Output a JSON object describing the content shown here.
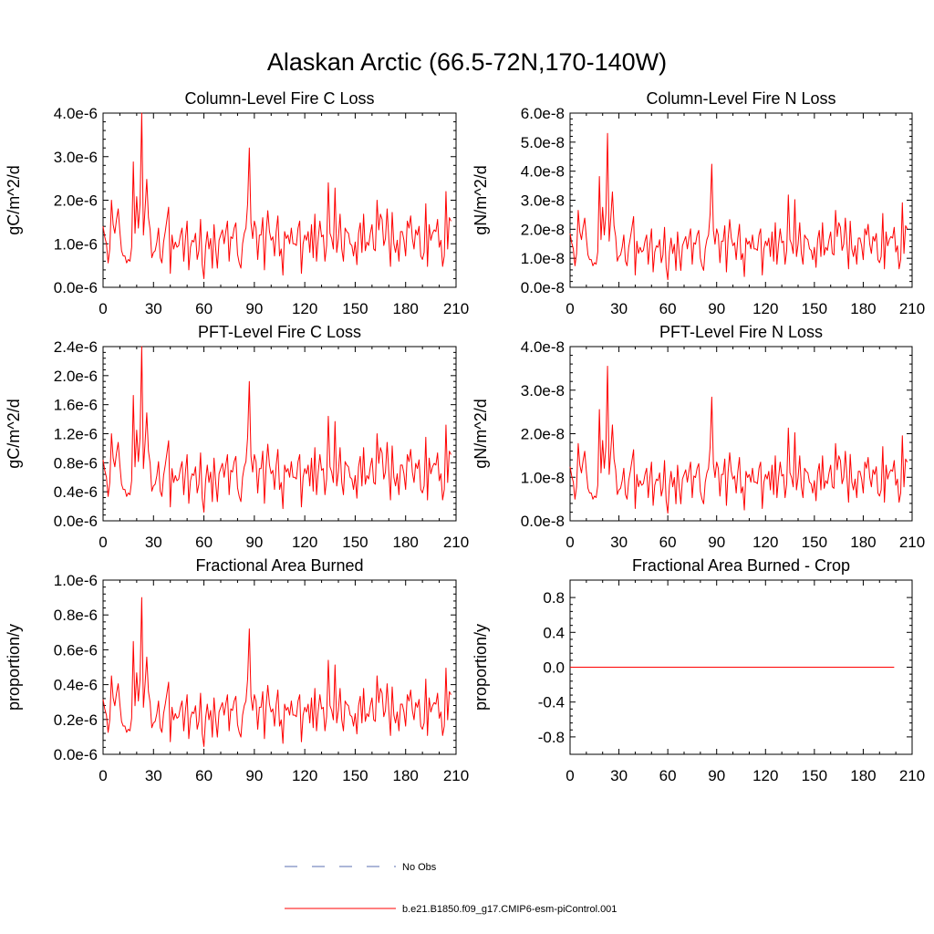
{
  "figure": {
    "title": "Alaskan Arctic (66.5-72N,170-140W)"
  },
  "legend": {
    "entries": [
      {
        "label": "No Obs",
        "color": "#5a6fb2",
        "style": "dashed"
      },
      {
        "label": "b.e21.B1850.f09_g17.CMIP6-esm-piControl.001",
        "color": "#ff0000",
        "style": "solid"
      }
    ]
  },
  "chart_data": [
    {
      "type": "line",
      "title": "Column-Level Fire C Loss",
      "xlabel": "",
      "ylabel": "gC/m^2/d",
      "xlim": [
        0,
        210
      ],
      "ylim": [
        0,
        4e-06
      ],
      "x_ticks": [
        0,
        30,
        60,
        90,
        120,
        150,
        180,
        210
      ],
      "x_tick_labels": [
        "0",
        "30",
        "60",
        "90",
        "120",
        "150",
        "180",
        "210"
      ],
      "y_ticks": [
        0,
        1e-06,
        2e-06,
        3e-06,
        4e-06
      ],
      "y_tick_labels": [
        "0.0e-6",
        "1.0e-6",
        "2.0e-6",
        "3.0e-6",
        "4.0e-6"
      ],
      "peak_scale": 4e-06,
      "series": [
        {
          "name": "b.e21.B1850.f09_g17.CMIP6-esm-piControl.001",
          "color": "#ff0000",
          "values_ref": "shape"
        }
      ]
    },
    {
      "type": "line",
      "title": "Column-Level Fire N Loss",
      "xlabel": "",
      "ylabel": "gN/m^2/d",
      "xlim": [
        0,
        210
      ],
      "ylim": [
        0,
        6e-08
      ],
      "x_ticks": [
        0,
        30,
        60,
        90,
        120,
        150,
        180,
        210
      ],
      "x_tick_labels": [
        "0",
        "30",
        "60",
        "90",
        "120",
        "150",
        "180",
        "210"
      ],
      "y_ticks": [
        0,
        1e-08,
        2e-08,
        3e-08,
        4e-08,
        5e-08,
        6e-08
      ],
      "y_tick_labels": [
        "0.0e-8",
        "1.0e-8",
        "2.0e-8",
        "3.0e-8",
        "4.0e-8",
        "5.0e-8",
        "6.0e-8"
      ],
      "peak_scale": 5.3e-08,
      "series": [
        {
          "name": "b.e21.B1850.f09_g17.CMIP6-esm-piControl.001",
          "color": "#ff0000",
          "values_ref": "shape"
        }
      ]
    },
    {
      "type": "line",
      "title": "PFT-Level Fire C Loss",
      "xlabel": "",
      "ylabel": "gC/m^2/d",
      "xlim": [
        0,
        210
      ],
      "ylim": [
        0,
        2.4e-06
      ],
      "x_ticks": [
        0,
        30,
        60,
        90,
        120,
        150,
        180,
        210
      ],
      "x_tick_labels": [
        "0",
        "30",
        "60",
        "90",
        "120",
        "150",
        "180",
        "210"
      ],
      "y_ticks": [
        0,
        4e-07,
        8e-07,
        1.2e-06,
        1.6e-06,
        2e-06,
        2.4e-06
      ],
      "y_tick_labels": [
        "0.0e-6",
        "0.4e-6",
        "0.8e-6",
        "1.2e-6",
        "1.6e-6",
        "2.0e-6",
        "2.4e-6"
      ],
      "peak_scale": 2.4e-06,
      "series": [
        {
          "name": "b.e21.B1850.f09_g17.CMIP6-esm-piControl.001",
          "color": "#ff0000",
          "values_ref": "shape"
        }
      ]
    },
    {
      "type": "line",
      "title": "PFT-Level Fire N Loss",
      "xlabel": "",
      "ylabel": "gN/m^2/d",
      "xlim": [
        0,
        210
      ],
      "ylim": [
        0,
        4e-08
      ],
      "x_ticks": [
        0,
        30,
        60,
        90,
        120,
        150,
        180,
        210
      ],
      "x_tick_labels": [
        "0",
        "30",
        "60",
        "90",
        "120",
        "150",
        "180",
        "210"
      ],
      "y_ticks": [
        0,
        1e-08,
        2e-08,
        3e-08,
        4e-08
      ],
      "y_tick_labels": [
        "0.0e-8",
        "1.0e-8",
        "2.0e-8",
        "3.0e-8",
        "4.0e-8"
      ],
      "peak_scale": 3.55e-08,
      "series": [
        {
          "name": "b.e21.B1850.f09_g17.CMIP6-esm-piControl.001",
          "color": "#ff0000",
          "values_ref": "shape"
        }
      ]
    },
    {
      "type": "line",
      "title": "Fractional Area Burned",
      "xlabel": "",
      "ylabel": "proportion/y",
      "xlim": [
        0,
        210
      ],
      "ylim": [
        0,
        1e-06
      ],
      "x_ticks": [
        0,
        30,
        60,
        90,
        120,
        150,
        180,
        210
      ],
      "x_tick_labels": [
        "0",
        "30",
        "60",
        "90",
        "120",
        "150",
        "180",
        "210"
      ],
      "y_ticks": [
        0,
        2e-07,
        4e-07,
        6e-07,
        8e-07,
        1e-06
      ],
      "y_tick_labels": [
        "0.0e-6",
        "0.2e-6",
        "0.4e-6",
        "0.6e-6",
        "0.8e-6",
        "1.0e-6"
      ],
      "peak_scale": 9e-07,
      "series": [
        {
          "name": "b.e21.B1850.f09_g17.CMIP6-esm-piControl.001",
          "color": "#ff0000",
          "values_ref": "shape"
        }
      ]
    },
    {
      "type": "line",
      "title": "Fractional Area Burned - Crop",
      "xlabel": "",
      "ylabel": "proportion/y",
      "xlim": [
        0,
        210
      ],
      "ylim": [
        -1.0,
        1.0
      ],
      "x_ticks": [
        0,
        30,
        60,
        90,
        120,
        150,
        180,
        210
      ],
      "x_tick_labels": [
        "0",
        "30",
        "60",
        "90",
        "120",
        "150",
        "180",
        "210"
      ],
      "y_ticks": [
        -0.8,
        -0.4,
        0.0,
        0.4,
        0.8
      ],
      "y_tick_labels": [
        "-0.8",
        "-0.4",
        "0.0",
        "0.4",
        "0.8"
      ],
      "constant_value": 0.0,
      "series": [
        {
          "name": "b.e21.B1850.f09_g17.CMIP6-esm-piControl.001",
          "color": "#ff0000",
          "values_ref": "constant"
        }
      ]
    }
  ],
  "series_shape": {
    "x_start": 0,
    "x_step": 1,
    "relative_values": [
      0.35,
      0.29,
      0.25,
      0.14,
      0.22,
      0.5,
      0.36,
      0.31,
      0.39,
      0.45,
      0.32,
      0.21,
      0.18,
      0.18,
      0.14,
      0.16,
      0.15,
      0.23,
      0.72,
      0.31,
      0.52,
      0.34,
      0.48,
      1.0,
      0.3,
      0.45,
      0.62,
      0.4,
      0.33,
      0.17,
      0.2,
      0.21,
      0.26,
      0.34,
      0.17,
      0.14,
      0.26,
      0.32,
      0.39,
      0.46,
      0.08,
      0.3,
      0.22,
      0.26,
      0.23,
      0.24,
      0.3,
      0.34,
      0.15,
      0.28,
      0.38,
      0.1,
      0.23,
      0.27,
      0.26,
      0.31,
      0.16,
      0.21,
      0.39,
      0.13,
      0.05,
      0.23,
      0.32,
      0.22,
      0.28,
      0.11,
      0.36,
      0.22,
      0.11,
      0.27,
      0.3,
      0.33,
      0.25,
      0.32,
      0.38,
      0.15,
      0.29,
      0.28,
      0.34,
      0.37,
      0.19,
      0.14,
      0.11,
      0.25,
      0.31,
      0.34,
      0.48,
      0.8,
      0.37,
      0.28,
      0.38,
      0.34,
      0.16,
      0.3,
      0.3,
      0.4,
      0.1,
      0.31,
      0.44,
      0.32,
      0.27,
      0.29,
      0.18,
      0.32,
      0.41,
      0.18,
      0.22,
      0.07,
      0.32,
      0.28,
      0.3,
      0.25,
      0.34,
      0.25,
      0.25,
      0.24,
      0.34,
      0.38,
      0.08,
      0.25,
      0.3,
      0.27,
      0.32,
      0.2,
      0.36,
      0.17,
      0.42,
      0.15,
      0.28,
      0.38,
      0.29,
      0.3,
      0.15,
      0.24,
      0.6,
      0.31,
      0.28,
      0.22,
      0.57,
      0.2,
      0.28,
      0.42,
      0.22,
      0.15,
      0.34,
      0.32,
      0.31,
      0.25,
      0.24,
      0.18,
      0.26,
      0.13,
      0.31,
      0.37,
      0.2,
      0.42,
      0.21,
      0.26,
      0.24,
      0.31,
      0.36,
      0.22,
      0.21,
      0.5,
      0.33,
      0.42,
      0.39,
      0.24,
      0.28,
      0.45,
      0.28,
      0.12,
      0.43,
      0.25,
      0.2,
      0.27,
      0.15,
      0.32,
      0.32,
      0.27,
      0.18,
      0.38,
      0.34,
      0.41,
      0.28,
      0.22,
      0.33,
      0.3,
      0.35,
      0.18,
      0.16,
      0.2,
      0.48,
      0.12,
      0.36,
      0.27,
      0.31,
      0.33,
      0.32,
      0.39,
      0.23,
      0.27,
      0.12,
      0.18,
      0.55,
      0.22,
      0.4,
      0.38
    ],
    "constant_length": 200
  }
}
